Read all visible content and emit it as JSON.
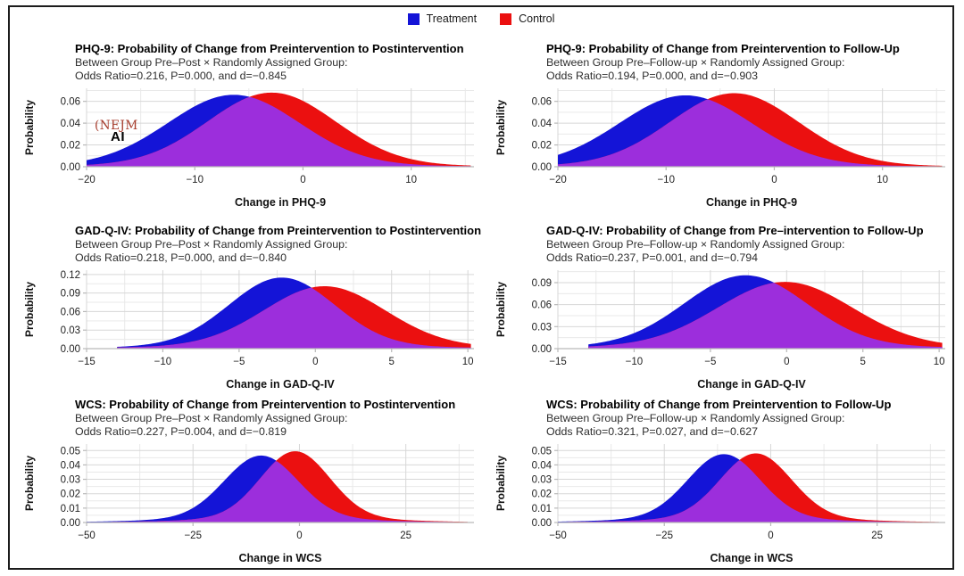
{
  "legend": {
    "position": "top-center",
    "items": [
      {
        "label": "Treatment",
        "color": "#1414d7"
      },
      {
        "label": "Control",
        "color": "#eb1010"
      }
    ]
  },
  "watermark": {
    "line1": "(NEJM",
    "line2": "AI"
  },
  "colors": {
    "treatment": "#1414d7",
    "control": "#eb1010",
    "overlap": "#9c2edc",
    "grid": "#d7d7d7",
    "grid_minor": "#e9e9e9",
    "axis": "#b9b9b9",
    "text": "#222222"
  },
  "chart_data": [
    {
      "type": "area",
      "title": "PHQ-9: Probability of Change from Preintervention to Postintervention",
      "subtitle1": "Between Group Pre–Post × Randomly Assigned Group:",
      "subtitle2": "Odds Ratio=0.216, P=0.000, and d=−0.845",
      "xlabel": "Change in PHQ-9",
      "ylabel": "Probability",
      "xlim": [
        -20,
        15.8
      ],
      "ylim": [
        0,
        0.072
      ],
      "clip": [
        -20,
        15.5
      ],
      "xticks": [
        {
          "v": -20,
          "label": "−20"
        },
        {
          "v": -10,
          "label": "−10"
        },
        {
          "v": 0,
          "label": "0"
        },
        {
          "v": 10,
          "label": "10"
        }
      ],
      "xticks_minor": [
        -15,
        -5,
        5,
        15
      ],
      "yticks": [
        {
          "v": 0,
          "label": "0.00"
        },
        {
          "v": 0.02,
          "label": "0.02"
        },
        {
          "v": 0.04,
          "label": "0.04"
        },
        {
          "v": 0.06,
          "label": "0.06"
        }
      ],
      "yticks_minor": [
        0.01,
        0.03,
        0.05,
        0.07
      ],
      "series": [
        {
          "name": "Treatment",
          "mean": -6.4,
          "sd": 6.05,
          "peak": 0.066,
          "tail": 0.02
        },
        {
          "name": "Control",
          "mean": -2.9,
          "sd": 5.9,
          "peak": 0.068,
          "tail": 0.02
        }
      ]
    },
    {
      "type": "area",
      "title": "PHQ-9: Probability of Change from Preintervention to Follow-Up",
      "subtitle1": "Between Group Pre–Follow-up × Randomly Assigned Group:",
      "subtitle2": "Odds Ratio=0.194, P=0.000, and d=−0.903",
      "xlabel": "Change in PHQ-9",
      "ylabel": "Probability",
      "xlim": [
        -20,
        15.8
      ],
      "ylim": [
        0,
        0.072
      ],
      "clip": [
        -20,
        15.5
      ],
      "xticks": [
        {
          "v": -20,
          "label": "−20"
        },
        {
          "v": -10,
          "label": "−10"
        },
        {
          "v": 0,
          "label": "0"
        },
        {
          "v": 10,
          "label": "10"
        }
      ],
      "xticks_minor": [
        -15,
        -5,
        5,
        15
      ],
      "yticks": [
        {
          "v": 0,
          "label": "0.00"
        },
        {
          "v": 0.02,
          "label": "0.02"
        },
        {
          "v": 0.04,
          "label": "0.04"
        },
        {
          "v": 0.06,
          "label": "0.06"
        }
      ],
      "yticks_minor": [
        0.01,
        0.03,
        0.05,
        0.07
      ],
      "series": [
        {
          "name": "Treatment",
          "mean": -8.2,
          "sd": 6.1,
          "peak": 0.0655,
          "tail": 0.02
        },
        {
          "name": "Control",
          "mean": -3.7,
          "sd": 5.9,
          "peak": 0.0675,
          "tail": 0.02
        }
      ]
    },
    {
      "type": "area",
      "title": "GAD-Q-IV: Probability of Change from Preintervention to Postintervention",
      "subtitle1": "Between Group Pre–Post × Randomly Assigned Group:",
      "subtitle2": "Odds Ratio=0.218, P=0.000, and d=−0.840",
      "xlabel": "Change in GAD-Q-IV",
      "ylabel": "Probability",
      "xlim": [
        -15,
        10.4
      ],
      "ylim": [
        0,
        0.127
      ],
      "clip": [
        -13,
        10.2
      ],
      "xticks": [
        {
          "v": -15,
          "label": "−15"
        },
        {
          "v": -10,
          "label": "−10"
        },
        {
          "v": -5,
          "label": "−5"
        },
        {
          "v": 0,
          "label": "0"
        },
        {
          "v": 5,
          "label": "5"
        },
        {
          "v": 10,
          "label": "10"
        }
      ],
      "xticks_minor": [
        -12.5,
        -7.5,
        -2.5,
        2.5,
        7.5
      ],
      "yticks": [
        {
          "v": 0,
          "label": "0.00"
        },
        {
          "v": 0.03,
          "label": "0.03"
        },
        {
          "v": 0.06,
          "label": "0.06"
        },
        {
          "v": 0.09,
          "label": "0.09"
        },
        {
          "v": 0.12,
          "label": "0.12"
        }
      ],
      "yticks_minor": [
        0.015,
        0.045,
        0.075,
        0.105
      ],
      "series": [
        {
          "name": "Treatment",
          "mean": -2.2,
          "sd": 3.45,
          "peak": 0.115,
          "tail": 0.04
        },
        {
          "name": "Control",
          "mean": 0.6,
          "sd": 3.95,
          "peak": 0.101,
          "tail": 0.04
        }
      ]
    },
    {
      "type": "area",
      "title": "GAD-Q-IV: Probability of Change from Pre–intervention to Follow-Up",
      "subtitle1": "Between Group Pre–Follow-up × Randomly Assigned Group:",
      "subtitle2": "Odds Ratio=0.237, P=0.001, and d=−0.794",
      "xlabel": "Change in GAD-Q-IV",
      "ylabel": "Probability",
      "xlim": [
        -15,
        10.4
      ],
      "ylim": [
        0,
        0.107
      ],
      "clip": [
        -13,
        10.2
      ],
      "xticks": [
        {
          "v": -15,
          "label": "−15"
        },
        {
          "v": -10,
          "label": "−10"
        },
        {
          "v": -5,
          "label": "−5"
        },
        {
          "v": 0,
          "label": "0"
        },
        {
          "v": 5,
          "label": "5"
        },
        {
          "v": 10,
          "label": "10"
        }
      ],
      "xticks_minor": [
        -12.5,
        -7.5,
        -2.5,
        2.5,
        7.5
      ],
      "yticks": [
        {
          "v": 0,
          "label": "0.00"
        },
        {
          "v": 0.03,
          "label": "0.03"
        },
        {
          "v": 0.06,
          "label": "0.06"
        },
        {
          "v": 0.09,
          "label": "0.09"
        }
      ],
      "yticks_minor": [
        0.015,
        0.045,
        0.075,
        0.105
      ],
      "series": [
        {
          "name": "Treatment",
          "mean": -2.7,
          "sd": 4.0,
          "peak": 0.1,
          "tail": 0.04
        },
        {
          "name": "Control",
          "mean": -0.1,
          "sd": 4.38,
          "peak": 0.091,
          "tail": 0.04
        }
      ]
    },
    {
      "type": "area",
      "title": "WCS: Probability of Change from Preintervention to Postintervention",
      "subtitle1": "Between Group Pre–Post × Randomly Assigned Group:",
      "subtitle2": "Odds Ratio=0.227, P=0.004, and d=−0.819",
      "xlabel": "Change in WCS",
      "ylabel": "Probability",
      "xlim": [
        -50,
        41
      ],
      "ylim": [
        0,
        0.0545
      ],
      "clip": [
        -50,
        39.5
      ],
      "xticks": [
        {
          "v": -50,
          "label": "−50"
        },
        {
          "v": -25,
          "label": "−25"
        },
        {
          "v": 0,
          "label": "0"
        },
        {
          "v": 25,
          "label": "25"
        }
      ],
      "xticks_minor": [
        -37.5,
        -12.5,
        12.5,
        37.5
      ],
      "yticks": [
        {
          "v": 0,
          "label": "0.00"
        },
        {
          "v": 0.01,
          "label": "0.01"
        },
        {
          "v": 0.02,
          "label": "0.02"
        },
        {
          "v": 0.03,
          "label": "0.03"
        },
        {
          "v": 0.04,
          "label": "0.04"
        },
        {
          "v": 0.05,
          "label": "0.05"
        }
      ],
      "yticks_minor": [
        0.005,
        0.015,
        0.025,
        0.035,
        0.045
      ],
      "series": [
        {
          "name": "Treatment",
          "mean": -9,
          "sd": 8.6,
          "peak": 0.0465,
          "tail": 0.07
        },
        {
          "name": "Control",
          "mean": -1,
          "sd": 8.1,
          "peak": 0.0495,
          "tail": 0.07
        }
      ]
    },
    {
      "type": "area",
      "title": "WCS: Probability of Change from Preintervention to Follow-Up",
      "subtitle1": "Between Group Pre–Follow-up × Randomly Assigned Group:",
      "subtitle2": "Odds Ratio=0.321, P=0.027, and d=−0.627",
      "xlabel": "Change in WCS",
      "ylabel": "Probability",
      "xlim": [
        -50,
        41
      ],
      "ylim": [
        0,
        0.0545
      ],
      "clip": [
        -50,
        39.5
      ],
      "xticks": [
        {
          "v": -50,
          "label": "−50"
        },
        {
          "v": -25,
          "label": "−25"
        },
        {
          "v": 0,
          "label": "0"
        },
        {
          "v": 25,
          "label": "25"
        }
      ],
      "xticks_minor": [
        -37.5,
        -12.5,
        12.5,
        37.5
      ],
      "yticks": [
        {
          "v": 0,
          "label": "0.00"
        },
        {
          "v": 0.01,
          "label": "0.01"
        },
        {
          "v": 0.02,
          "label": "0.02"
        },
        {
          "v": 0.03,
          "label": "0.03"
        },
        {
          "v": 0.04,
          "label": "0.04"
        },
        {
          "v": 0.05,
          "label": "0.05"
        }
      ],
      "yticks_minor": [
        0.005,
        0.015,
        0.025,
        0.035,
        0.045
      ],
      "series": [
        {
          "name": "Treatment",
          "mean": -11,
          "sd": 8.45,
          "peak": 0.0475,
          "tail": 0.07
        },
        {
          "name": "Control",
          "mean": -3.5,
          "sd": 8.3,
          "peak": 0.048,
          "tail": 0.07
        }
      ]
    }
  ]
}
